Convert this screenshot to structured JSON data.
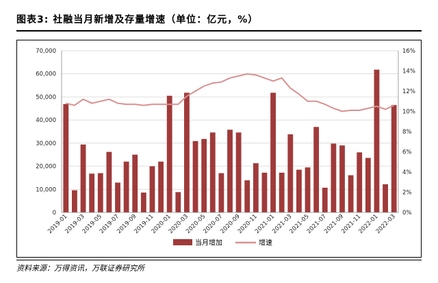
{
  "title": "图表3:    社融当月新增及存量增速（单位：亿元，%）",
  "source": "资料来源：万得资讯，万联证券研究所",
  "chart_data": {
    "type": "bar",
    "x": [
      "2019-01",
      "2019-02",
      "2019-03",
      "2019-04",
      "2019-05",
      "2019-06",
      "2019-07",
      "2019-08",
      "2019-09",
      "2019-10",
      "2019-11",
      "2019-12",
      "2020-01",
      "2020-02",
      "2020-03",
      "2020-04",
      "2020-05",
      "2020-06",
      "2020-07",
      "2020-08",
      "2020-09",
      "2020-10",
      "2020-11",
      "2020-12",
      "2021-01",
      "2021-02",
      "2021-03",
      "2021-04",
      "2021-05",
      "2021-06",
      "2021-07",
      "2021-08",
      "2021-09",
      "2021-10",
      "2021-11",
      "2021-12",
      "2022-01",
      "2022-02",
      "2022-03"
    ],
    "x_tick_labels": [
      "2019-01",
      "2019-03",
      "2019-05",
      "2019-07",
      "2019-09",
      "2019-11",
      "2020-01",
      "2020-03",
      "2020-05",
      "2020-07",
      "2020-09",
      "2020-11",
      "2021-01",
      "2021-03",
      "2021-05",
      "2021-07",
      "2021-09",
      "2021-11",
      "2022-01",
      "2022-03"
    ],
    "series": [
      {
        "name": "当月增加",
        "type": "bar",
        "axis": "left",
        "color": "#a03a3a",
        "values": [
          46900,
          9600,
          29400,
          16800,
          17000,
          26200,
          12900,
          22000,
          25000,
          8600,
          20000,
          22000,
          50500,
          8800,
          51800,
          30900,
          31800,
          34600,
          17000,
          35800,
          34600,
          13900,
          21300,
          17200,
          51800,
          17200,
          33800,
          18500,
          19500,
          37000,
          10700,
          29800,
          29000,
          16100,
          26000,
          23600,
          61800,
          12200,
          46500
        ]
      },
      {
        "name": "增速",
        "type": "line",
        "axis": "right",
        "color": "#d89090",
        "values": [
          10.8,
          10.6,
          11.2,
          10.8,
          11.0,
          11.2,
          10.8,
          10.7,
          10.7,
          10.6,
          10.7,
          10.7,
          10.7,
          10.7,
          11.5,
          12.0,
          12.5,
          12.8,
          12.9,
          13.3,
          13.5,
          13.7,
          13.6,
          13.3,
          13.0,
          13.3,
          12.3,
          11.7,
          11.0,
          11.0,
          10.7,
          10.3,
          10.0,
          10.1,
          10.1,
          10.3,
          10.5,
          10.2,
          10.6
        ]
      }
    ],
    "yleft_ticks": [
      "0",
      "10,000",
      "20,000",
      "30,000",
      "40,000",
      "50,000",
      "60,000",
      "70,000"
    ],
    "yright_ticks": [
      "0%",
      "2%",
      "4%",
      "6%",
      "8%",
      "10%",
      "12%",
      "14%",
      "16%"
    ],
    "yleft_lim": [
      0,
      70000
    ],
    "yright_lim": [
      0,
      16
    ],
    "legend_position": "bottom"
  }
}
